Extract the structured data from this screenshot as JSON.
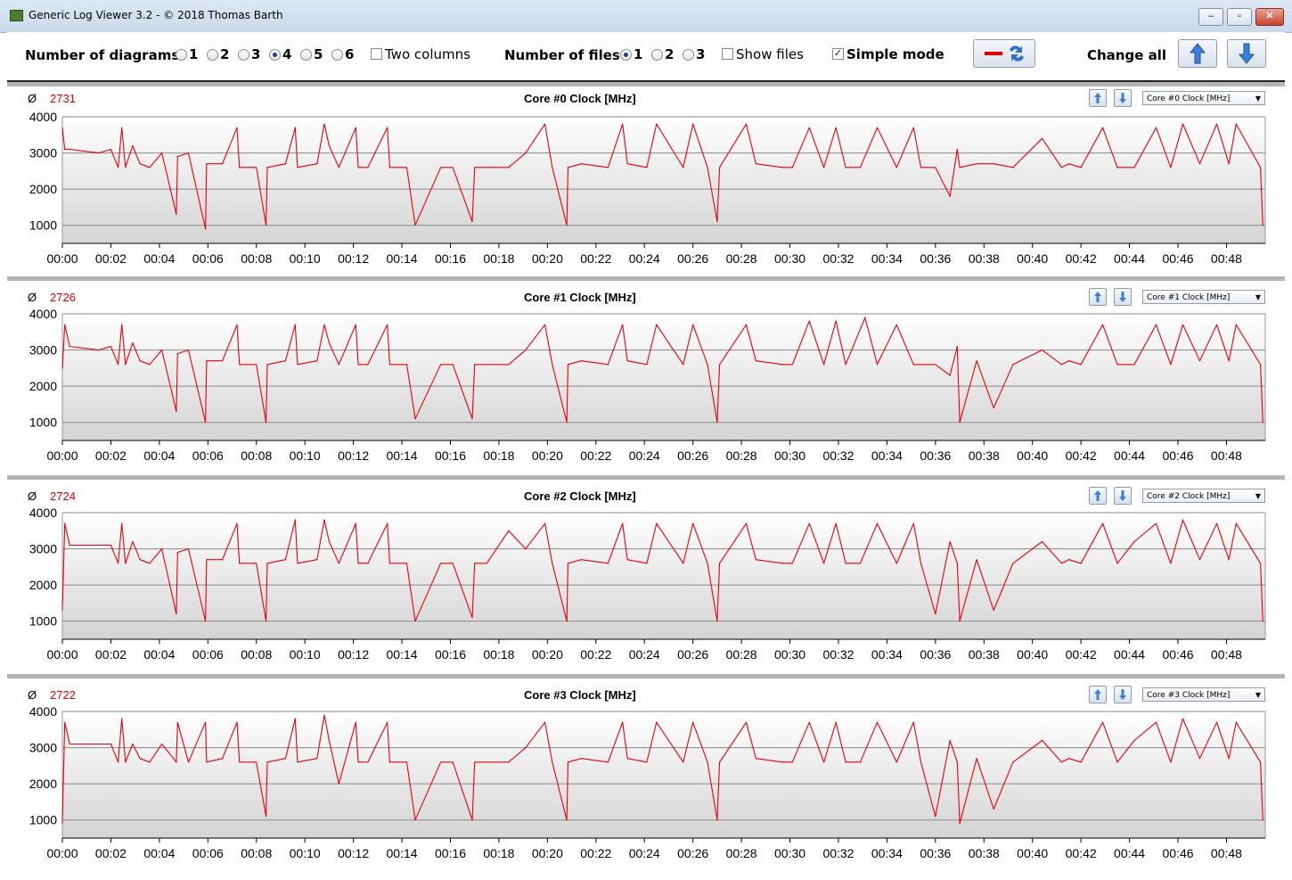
{
  "window": {
    "title": "Generic Log Viewer 3.2 - © 2018 Thomas Barth"
  },
  "toolbar": {
    "num_diagrams_label": "Number of diagrams",
    "diagram_options": [
      "1",
      "2",
      "3",
      "4",
      "5",
      "6"
    ],
    "diagram_selected": "4",
    "two_columns_label": "Two columns",
    "two_columns_checked": false,
    "num_files_label": "Number of files",
    "file_options": [
      "1",
      "2",
      "3"
    ],
    "file_selected": "1",
    "show_files_label": "Show files",
    "show_files_checked": false,
    "simple_mode_label": "Simple mode",
    "simple_mode_checked": true,
    "change_all_label": "Change all"
  },
  "avg_symbol": "Ø",
  "line_color": "#e8000b",
  "chart_data": [
    {
      "type": "line",
      "title": "Core #0 Clock [MHz]",
      "selector": "Core #0 Clock [MHz]",
      "average": "2731",
      "y_ticks": [
        "4000",
        "3000",
        "2000",
        "1000"
      ],
      "x_ticks": [
        "00:00",
        "00:02",
        "00:04",
        "00:06",
        "00:08",
        "00:10",
        "00:12",
        "00:14",
        "00:16",
        "00:18",
        "00:20",
        "00:22",
        "00:24",
        "00:26",
        "00:28",
        "00:30",
        "00:32",
        "00:34",
        "00:36",
        "00:38",
        "00:40",
        "00:42",
        "00:44",
        "00:46",
        "00:48"
      ],
      "ylim": [
        500,
        4000
      ],
      "xlim_minutes": [
        0,
        49.6
      ],
      "x_minutes": [
        0,
        0.1,
        0.3,
        1.5,
        2.0,
        2.3,
        2.45,
        2.6,
        2.9,
        3.2,
        3.6,
        4.1,
        4.7,
        4.75,
        5.2,
        5.9,
        5.95,
        6.6,
        7.2,
        7.3,
        8.0,
        8.4,
        8.45,
        9.2,
        9.6,
        9.7,
        10.5,
        10.8,
        11.0,
        11.4,
        12.1,
        12.2,
        12.6,
        13.4,
        13.5,
        14.2,
        14.55,
        15.6,
        16.1,
        16.9,
        17.0,
        17.5,
        18.4,
        19.1,
        19.9,
        20.2,
        20.8,
        20.85,
        21.4,
        22.5,
        23.1,
        23.3,
        24.1,
        24.5,
        25.6,
        26.0,
        26.6,
        27.0,
        27.1,
        28.2,
        28.6,
        29.7,
        30.1,
        30.8,
        31.4,
        31.9,
        32.3,
        32.9,
        33.6,
        34.4,
        35.1,
        35.4,
        36.0,
        36.6,
        36.9,
        37.0,
        37.7,
        38.4,
        39.2,
        40.4,
        41.2,
        41.5,
        42.0,
        42.9,
        43.5,
        44.2,
        45.1,
        45.7,
        46.2,
        46.9,
        47.6,
        48.1,
        48.4,
        49.4,
        49.5
      ],
      "y_values": [
        3700,
        3100,
        3100,
        3000,
        3100,
        2600,
        3700,
        2600,
        3200,
        2700,
        2600,
        3000,
        1300,
        2900,
        3000,
        900,
        2700,
        2700,
        3700,
        2600,
        2600,
        1000,
        2600,
        2700,
        3700,
        2600,
        2700,
        3800,
        3200,
        2600,
        3700,
        2600,
        2600,
        3700,
        2600,
        2600,
        1000,
        2600,
        2600,
        1100,
        2600,
        2600,
        2600,
        3000,
        3800,
        2600,
        1000,
        2600,
        2700,
        2600,
        3800,
        2700,
        2600,
        3800,
        2600,
        3800,
        2600,
        1100,
        2600,
        3800,
        2700,
        2600,
        2600,
        3700,
        2600,
        3700,
        2600,
        2600,
        3700,
        2600,
        3700,
        2600,
        2600,
        1800,
        3100,
        2600,
        2700,
        2700,
        2600,
        3400,
        2600,
        2700,
        2600,
        3700,
        2600,
        2600,
        3700,
        2600,
        3800,
        2700,
        3800,
        2700,
        3800,
        2600,
        1000
      ]
    },
    {
      "type": "line",
      "title": "Core #1 Clock [MHz]",
      "selector": "Core #1 Clock [MHz]",
      "average": "2726",
      "y_ticks": [
        "4000",
        "3000",
        "2000",
        "1000"
      ],
      "x_ticks": [
        "00:00",
        "00:02",
        "00:04",
        "00:06",
        "00:08",
        "00:10",
        "00:12",
        "00:14",
        "00:16",
        "00:18",
        "00:20",
        "00:22",
        "00:24",
        "00:26",
        "00:28",
        "00:30",
        "00:32",
        "00:34",
        "00:36",
        "00:38",
        "00:40",
        "00:42",
        "00:44",
        "00:46",
        "00:48"
      ],
      "ylim": [
        500,
        4000
      ],
      "xlim_minutes": [
        0,
        49.6
      ],
      "x_minutes": [
        0,
        0.1,
        0.3,
        1.5,
        2.0,
        2.3,
        2.45,
        2.6,
        2.9,
        3.2,
        3.6,
        4.1,
        4.7,
        4.75,
        5.2,
        5.9,
        5.95,
        6.6,
        7.2,
        7.3,
        8.0,
        8.4,
        8.45,
        9.2,
        9.6,
        9.7,
        10.5,
        10.8,
        11.0,
        11.4,
        12.1,
        12.2,
        12.6,
        13.4,
        13.5,
        14.2,
        14.55,
        15.6,
        16.1,
        16.9,
        17.0,
        17.5,
        18.4,
        19.1,
        19.9,
        20.2,
        20.8,
        20.85,
        21.4,
        22.5,
        23.1,
        23.3,
        24.1,
        24.5,
        25.6,
        26.0,
        26.6,
        27.0,
        27.1,
        28.2,
        28.6,
        29.7,
        30.1,
        30.8,
        31.4,
        31.9,
        32.3,
        33.1,
        33.6,
        34.4,
        35.1,
        35.4,
        36.0,
        36.6,
        36.9,
        37.0,
        37.7,
        38.4,
        39.2,
        40.4,
        41.2,
        41.5,
        42.0,
        42.9,
        43.5,
        44.2,
        45.1,
        45.7,
        46.2,
        46.9,
        47.6,
        48.1,
        48.4,
        49.4,
        49.5
      ],
      "y_values": [
        2500,
        3700,
        3100,
        3000,
        3100,
        2600,
        3700,
        2600,
        3200,
        2700,
        2600,
        3000,
        1300,
        2900,
        3000,
        1000,
        2700,
        2700,
        3700,
        2600,
        2600,
        1000,
        2600,
        2700,
        3700,
        2600,
        2700,
        3700,
        3200,
        2600,
        3700,
        2600,
        2600,
        3700,
        2600,
        2600,
        1100,
        2600,
        2600,
        1100,
        2600,
        2600,
        2600,
        3000,
        3700,
        2600,
        1000,
        2600,
        2700,
        2600,
        3700,
        2700,
        2600,
        3700,
        2600,
        3700,
        2600,
        1000,
        2600,
        3700,
        2700,
        2600,
        2600,
        3800,
        2600,
        3800,
        2600,
        3900,
        2600,
        3700,
        2600,
        2600,
        2600,
        2300,
        3100,
        1000,
        2700,
        1400,
        2600,
        3000,
        2600,
        2700,
        2600,
        3700,
        2600,
        2600,
        3700,
        2600,
        3700,
        2700,
        3700,
        2700,
        3700,
        2600,
        1000
      ]
    },
    {
      "type": "line",
      "title": "Core #2 Clock [MHz]",
      "selector": "Core #2 Clock [MHz]",
      "average": "2724",
      "y_ticks": [
        "4000",
        "3000",
        "2000",
        "1000"
      ],
      "x_ticks": [
        "00:00",
        "00:02",
        "00:04",
        "00:06",
        "00:08",
        "00:10",
        "00:12",
        "00:14",
        "00:16",
        "00:18",
        "00:20",
        "00:22",
        "00:24",
        "00:26",
        "00:28",
        "00:30",
        "00:32",
        "00:34",
        "00:36",
        "00:38",
        "00:40",
        "00:42",
        "00:44",
        "00:46",
        "00:48"
      ],
      "ylim": [
        500,
        4000
      ],
      "xlim_minutes": [
        0,
        49.6
      ],
      "x_minutes": [
        0,
        0.1,
        0.3,
        1.5,
        2.0,
        2.3,
        2.45,
        2.6,
        2.9,
        3.2,
        3.6,
        4.1,
        4.7,
        4.75,
        5.2,
        5.9,
        5.95,
        6.6,
        7.2,
        7.3,
        8.0,
        8.4,
        8.45,
        9.2,
        9.6,
        9.7,
        10.5,
        10.8,
        11.0,
        11.4,
        12.1,
        12.2,
        12.6,
        13.4,
        13.5,
        14.2,
        14.55,
        15.6,
        16.1,
        16.9,
        17.0,
        17.5,
        18.4,
        19.1,
        19.9,
        20.2,
        20.8,
        20.85,
        21.4,
        22.5,
        23.1,
        23.3,
        24.1,
        24.5,
        25.6,
        26.0,
        26.6,
        27.0,
        27.1,
        28.2,
        28.6,
        29.7,
        30.1,
        30.8,
        31.4,
        31.9,
        32.3,
        32.9,
        33.6,
        34.4,
        35.1,
        35.4,
        36.0,
        36.6,
        36.9,
        37.0,
        37.7,
        38.4,
        39.2,
        40.4,
        41.2,
        41.5,
        42.0,
        42.9,
        43.5,
        44.2,
        45.1,
        45.7,
        46.2,
        46.9,
        47.6,
        48.1,
        48.4,
        49.4,
        49.5
      ],
      "y_values": [
        1300,
        3700,
        3100,
        3100,
        3100,
        2600,
        3700,
        2600,
        3200,
        2700,
        2600,
        3000,
        1200,
        2900,
        3000,
        1000,
        2700,
        2700,
        3700,
        2600,
        2600,
        1000,
        2600,
        2700,
        3800,
        2600,
        2700,
        3800,
        3200,
        2600,
        3700,
        2600,
        2600,
        3700,
        2600,
        2600,
        1000,
        2600,
        2600,
        1100,
        2600,
        2600,
        3500,
        3000,
        3700,
        2600,
        1000,
        2600,
        2700,
        2600,
        3700,
        2700,
        2600,
        3700,
        2600,
        3700,
        2600,
        1000,
        2600,
        3700,
        2700,
        2600,
        2600,
        3700,
        2600,
        3700,
        2600,
        2600,
        3700,
        2600,
        3700,
        2600,
        1200,
        3200,
        2600,
        1000,
        2700,
        1300,
        2600,
        3200,
        2600,
        2700,
        2600,
        3700,
        2600,
        3200,
        3700,
        2600,
        3800,
        2700,
        3700,
        2700,
        3700,
        2600,
        1000
      ]
    },
    {
      "type": "line",
      "title": "Core #3 Clock [MHz]",
      "selector": "Core #3 Clock [MHz]",
      "average": "2722",
      "y_ticks": [
        "4000",
        "3000",
        "2000",
        "1000"
      ],
      "x_ticks": [
        "00:00",
        "00:02",
        "00:04",
        "00:06",
        "00:08",
        "00:10",
        "00:12",
        "00:14",
        "00:16",
        "00:18",
        "00:20",
        "00:22",
        "00:24",
        "00:26",
        "00:28",
        "00:30",
        "00:32",
        "00:34",
        "00:36",
        "00:38",
        "00:40",
        "00:42",
        "00:44",
        "00:46",
        "00:48"
      ],
      "ylim": [
        500,
        4000
      ],
      "xlim_minutes": [
        0,
        49.6
      ],
      "x_minutes": [
        0,
        0.1,
        0.3,
        1.5,
        2.0,
        2.3,
        2.45,
        2.6,
        2.9,
        3.2,
        3.6,
        4.1,
        4.7,
        4.75,
        5.2,
        5.9,
        5.95,
        6.6,
        7.2,
        7.3,
        8.0,
        8.4,
        8.45,
        9.2,
        9.6,
        9.7,
        10.5,
        10.8,
        11.0,
        11.4,
        12.1,
        12.2,
        12.6,
        13.4,
        13.5,
        14.2,
        14.55,
        15.6,
        16.1,
        16.9,
        17.0,
        17.5,
        18.4,
        19.1,
        19.9,
        20.2,
        20.8,
        20.85,
        21.4,
        22.5,
        23.1,
        23.3,
        24.1,
        24.5,
        25.6,
        26.0,
        26.6,
        27.0,
        27.1,
        28.2,
        28.6,
        29.7,
        30.1,
        30.8,
        31.4,
        31.9,
        32.3,
        32.9,
        33.6,
        34.4,
        35.1,
        35.4,
        36.0,
        36.6,
        36.9,
        37.0,
        37.7,
        38.4,
        39.2,
        40.4,
        41.2,
        41.5,
        42.0,
        42.9,
        43.5,
        44.2,
        45.1,
        45.7,
        46.2,
        46.9,
        47.6,
        48.1,
        48.4,
        49.4,
        49.5
      ],
      "y_values": [
        900,
        3700,
        3100,
        3100,
        3100,
        2600,
        3800,
        2600,
        3100,
        2700,
        2600,
        3100,
        2600,
        3700,
        2600,
        3700,
        2600,
        2700,
        3700,
        2600,
        2600,
        1100,
        2600,
        2700,
        3800,
        2600,
        2700,
        3900,
        3200,
        2000,
        3700,
        2600,
        2600,
        3700,
        2600,
        2600,
        1000,
        2600,
        2600,
        1000,
        2600,
        2600,
        2600,
        3000,
        3700,
        2600,
        1000,
        2600,
        2700,
        2600,
        3700,
        2700,
        2600,
        3700,
        2600,
        3700,
        2600,
        1000,
        2600,
        3700,
        2700,
        2600,
        2600,
        3700,
        2600,
        3700,
        2600,
        2600,
        3700,
        2600,
        3700,
        2600,
        1100,
        3200,
        2600,
        900,
        2700,
        1300,
        2600,
        3200,
        2600,
        2700,
        2600,
        3700,
        2600,
        3200,
        3700,
        2600,
        3800,
        2700,
        3700,
        2700,
        3700,
        2600,
        1000
      ]
    }
  ]
}
